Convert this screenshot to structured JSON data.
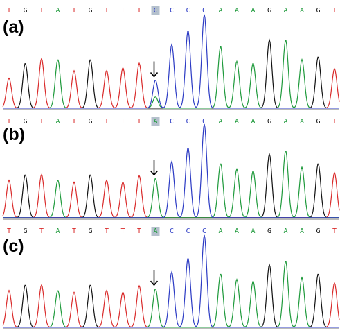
{
  "colors": {
    "A": "#1f9a3c",
    "C": "#2c3bc4",
    "G": "#111111",
    "T": "#d92a2a",
    "highlight": "#b4c0cc",
    "arrow": "#000000"
  },
  "panels": [
    {
      "label": "(a)",
      "sequence": [
        "T",
        "G",
        "T",
        "A",
        "T",
        "G",
        "T",
        "T",
        "T",
        "C",
        "C",
        "C",
        "C",
        "A",
        "A",
        "A",
        "G",
        "A",
        "A",
        "G",
        "T"
      ],
      "highlight_index": 9,
      "arrow_index": 9,
      "variant": "het"
    },
    {
      "label": "(b)",
      "sequence": [
        "T",
        "G",
        "T",
        "A",
        "T",
        "G",
        "T",
        "T",
        "T",
        "A",
        "C",
        "C",
        "C",
        "A",
        "A",
        "A",
        "G",
        "A",
        "A",
        "G",
        "T"
      ],
      "highlight_index": 9,
      "arrow_index": 9,
      "variant": "hom"
    },
    {
      "label": "(c)",
      "sequence": [
        "T",
        "G",
        "T",
        "A",
        "T",
        "G",
        "T",
        "T",
        "T",
        "A",
        "C",
        "C",
        "C",
        "A",
        "A",
        "A",
        "G",
        "A",
        "A",
        "G",
        "T"
      ],
      "highlight_index": 9,
      "arrow_index": 9,
      "variant": "hom"
    }
  ]
}
